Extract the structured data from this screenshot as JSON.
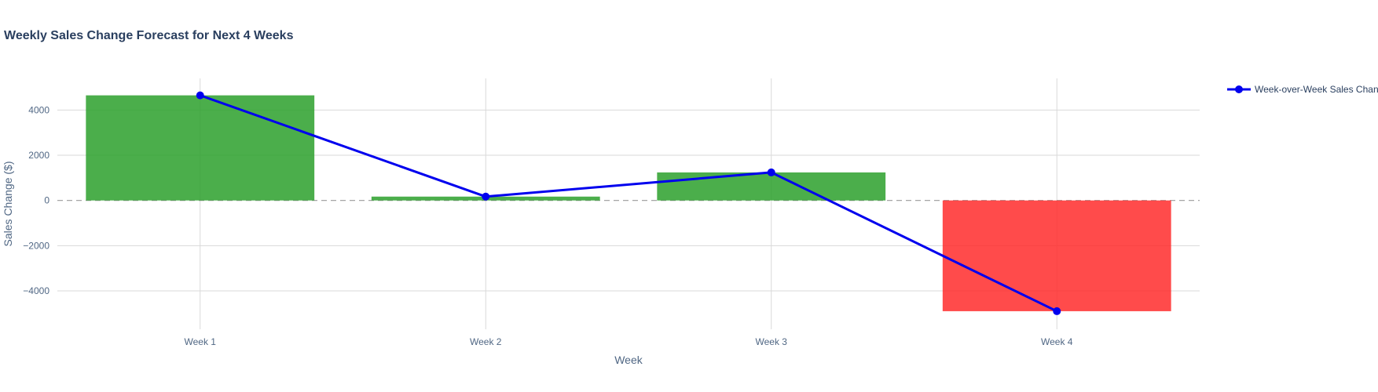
{
  "chart_data": {
    "type": "bar",
    "title": "Weekly Sales Change Forecast for Next 4 Weeks",
    "xlabel": "Week",
    "ylabel": "Sales Change ($)",
    "categories": [
      "Week 1",
      "Week 2",
      "Week 3",
      "Week 4"
    ],
    "values": [
      4650,
      170,
      1240,
      -4900
    ],
    "ylim": [
      -5700,
      5400
    ],
    "yticks": [
      -4000,
      -2000,
      0,
      2000,
      4000
    ],
    "ytick_labels": [
      "−4000",
      "−2000",
      "0",
      "2000",
      "4000"
    ],
    "grid": true,
    "zero_line": "dashed",
    "positive_color": "#2ca02c",
    "negative_color": "#ff2b2b",
    "series": [
      {
        "name": "Week-over-Week Sales Chan",
        "type": "line+markers",
        "color": "#0000ee",
        "values": [
          4650,
          170,
          1240,
          -4900
        ]
      }
    ],
    "legend_position": "top-right"
  }
}
